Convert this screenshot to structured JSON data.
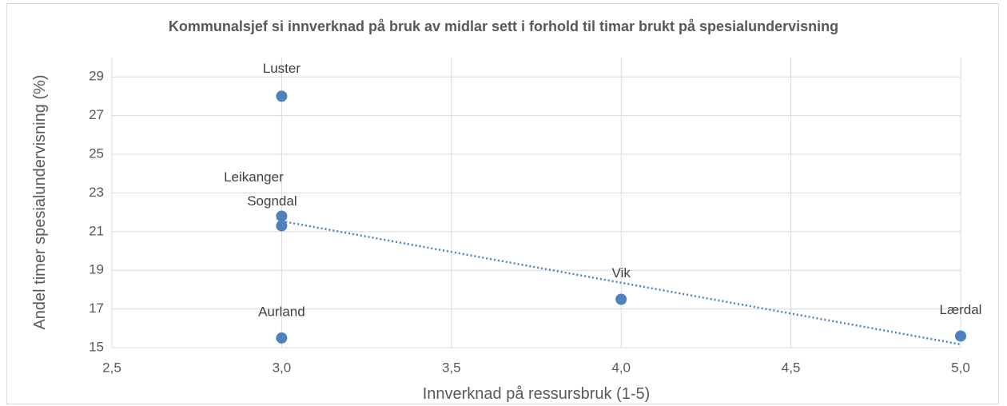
{
  "chart_data": {
    "type": "scatter",
    "title": "Kommunalsjef si innverknad på bruk av midlar sett i forhold til timar brukt på spesialundervisning",
    "x_label": "Innverknad på ressursbruk (1-5)",
    "y_label": "Andel timer spesialundervisning (%)",
    "series": [
      {
        "color": "#4f81bd",
        "labels": [
          "Luster",
          "Leikanger",
          "Sogndal",
          "Aurland",
          "Vik",
          "Lærdal"
        ],
        "x": [
          3,
          3,
          3,
          3,
          4,
          5
        ],
        "values": [
          28,
          21.8,
          21.3,
          15.5,
          17.5,
          15.6
        ]
      }
    ],
    "trendline": "linear",
    "xlim": [
      2.5,
      5.0
    ],
    "xticks": [
      {
        "value": 2.5,
        "label": "2,5"
      },
      {
        "value": 3.0,
        "label": "3,0"
      },
      {
        "value": 3.5,
        "label": "3,5"
      },
      {
        "value": 4.0,
        "label": "4,0"
      },
      {
        "value": 4.5,
        "label": "4,5"
      },
      {
        "value": 5.0,
        "label": "5,0"
      }
    ],
    "ylim": [
      15,
      30
    ],
    "yticks": [
      15,
      17,
      19,
      21,
      23,
      25,
      27,
      29
    ],
    "grid": true
  }
}
